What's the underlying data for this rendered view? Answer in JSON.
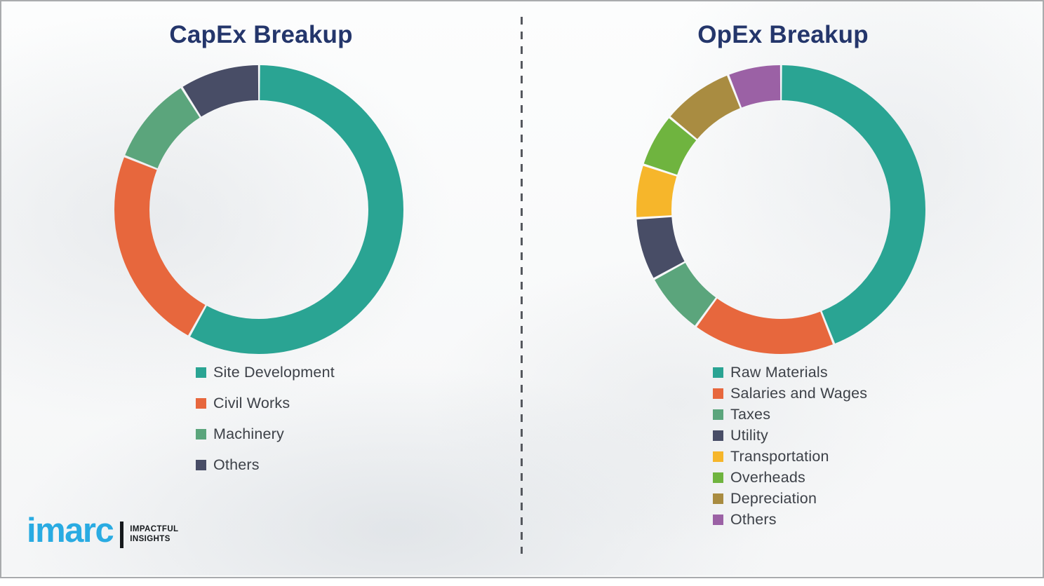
{
  "chart_data": [
    {
      "type": "pie",
      "subtype": "donut",
      "id": "capex",
      "title": "CapEx Breakup",
      "categories": [
        "Site Development",
        "Civil Works",
        "Machinery",
        "Others"
      ],
      "values": [
        58,
        23,
        10,
        9
      ],
      "colors": [
        "#2aa493",
        "#e7673d",
        "#5ba57c",
        "#484d66"
      ],
      "start_angle_deg": 0,
      "direction": "clockwise",
      "legend_position": "below-left",
      "data_labels": "none"
    },
    {
      "type": "pie",
      "subtype": "donut",
      "id": "opex",
      "title": "OpEx Breakup",
      "categories": [
        "Raw Materials",
        "Salaries and Wages",
        "Taxes",
        "Utility",
        "Transportation",
        "Overheads",
        "Depreciation",
        "Others"
      ],
      "values": [
        44,
        16,
        7,
        7,
        6,
        6,
        8,
        6
      ],
      "colors": [
        "#2aa493",
        "#e7673d",
        "#5ba57c",
        "#484d66",
        "#f6b62b",
        "#6fb43f",
        "#a98c41",
        "#9b61a5"
      ],
      "start_angle_deg": 0,
      "direction": "clockwise",
      "legend_position": "below-left",
      "data_labels": "none"
    }
  ],
  "divider": {
    "style": "vertical-dashed",
    "color": "#55585e"
  },
  "logo": {
    "brand": "imarc",
    "tagline_line1": "IMPACTFUL",
    "tagline_line2": "INSIGHTS",
    "brand_color": "#29abe2"
  },
  "colors": {
    "title_text": "#24366b",
    "legend_text": "#3d4148",
    "frame_border": "#a9abad",
    "background": "#fafbfb"
  }
}
